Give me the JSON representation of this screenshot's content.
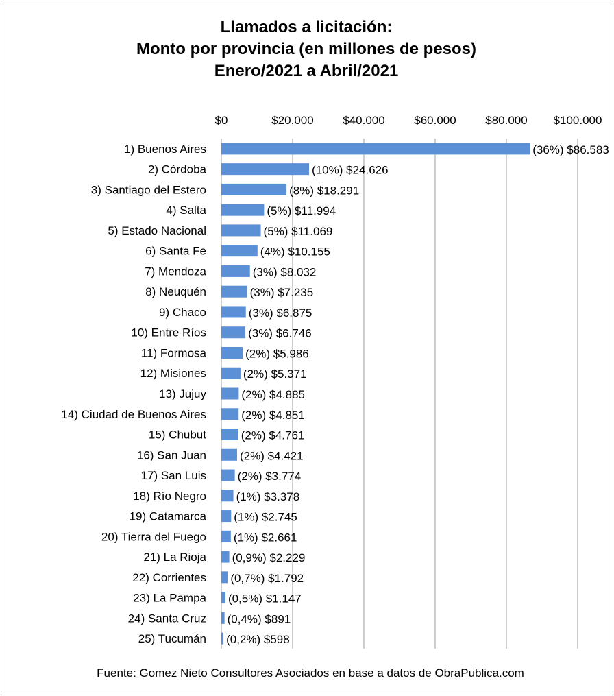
{
  "chart_data": {
    "type": "bar",
    "orientation": "horizontal",
    "title": [
      "Llamados a licitación:",
      "Monto por provincia (en millones de pesos)",
      "Enero/2021 a Abril/2021"
    ],
    "xlim": [
      0,
      100000
    ],
    "x_ticks": [
      {
        "value": 0,
        "label": "$0"
      },
      {
        "value": 20000,
        "label": "$20.000"
      },
      {
        "value": 40000,
        "label": "$40.000"
      },
      {
        "value": 60000,
        "label": "$60.000"
      },
      {
        "value": 80000,
        "label": "$80.000"
      },
      {
        "value": 100000,
        "label": "$100.000"
      }
    ],
    "x_axis_position": "top",
    "grid": true,
    "bar_color": "#5b8fd6",
    "categories": [
      "1) Buenos Aires",
      "2) Córdoba",
      "3) Santiago del Estero",
      "4) Salta",
      "5) Estado Nacional",
      "6) Santa Fe",
      "7) Mendoza",
      "8) Neuquén",
      "9) Chaco",
      "10) Entre Ríos",
      "11) Formosa",
      "12) Misiones",
      "13) Jujuy",
      "14) Ciudad de Buenos Aires",
      "15) Chubut",
      "16) San Juan",
      "17) San Luis",
      "18) Río Negro",
      "19) Catamarca",
      "20) Tierra del Fuego",
      "21) La Rioja",
      "22) Corrientes",
      "23) La Pampa",
      "24) Santa Cruz",
      "25) Tucumán"
    ],
    "values": [
      86583,
      24626,
      18291,
      11994,
      11069,
      10155,
      8032,
      7235,
      6875,
      6746,
      5986,
      5371,
      4885,
      4851,
      4761,
      4421,
      3774,
      3378,
      2745,
      2661,
      2229,
      1792,
      1147,
      891,
      598
    ],
    "data_labels": [
      "(36%) $86.583",
      "(10%) $24.626",
      "(8%) $18.291",
      "(5%) $11.994",
      "(5%) $11.069",
      "(4%) $10.155",
      "(3%) $8.032",
      "(3%) $7.235",
      "(3%) $6.875",
      "(3%) $6.746",
      "(2%) $5.986",
      "(2%) $5.371",
      "(2%) $4.885",
      "(2%) $4.851",
      "(2%) $4.761",
      "(2%) $4.421",
      "(2%) $3.774",
      "(1%) $3.378",
      "(1%) $2.745",
      "(1%) $2.661",
      "(0,9%) $2.229",
      "(0,7%) $1.792",
      "(0,5%) $1.147",
      "(0,4%) $891",
      "(0,2%) $598"
    ]
  },
  "source": "Fuente: Gomez Nieto Consultores Asociados en base a datos de ObraPublica.com"
}
